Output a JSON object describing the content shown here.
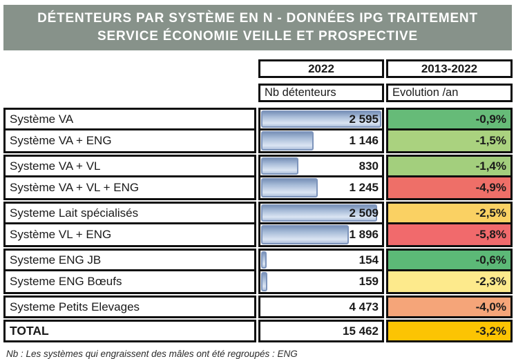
{
  "title": {
    "line1": "DÉTENTEURS PAR SYSTÈME EN N - DONNÉES IPG TRAITEMENT",
    "line2": "SERVICE ÉCONOMIE VEILLE ET PROSPECTIVE"
  },
  "header": {
    "year": "2022",
    "period": "2013-2022",
    "value_label": "Nb détenteurs",
    "evolution_label": "Evolution /an"
  },
  "table": {
    "rows": [
      {
        "label": "Système VA",
        "value": "2 595",
        "bar_pct": 100,
        "evolution": "-0,9%",
        "evolution_color": "#66bb78"
      },
      {
        "label": "Système VA + ENG",
        "value": "1 146",
        "bar_pct": 44.2,
        "evolution": "-1,5%",
        "evolution_color": "#aad27f"
      },
      {
        "label": "Systeme VA + VL",
        "value": "830",
        "bar_pct": 32,
        "evolution": "-1,4%",
        "evolution_color": "#a3cf7d"
      },
      {
        "label": "Système VA + VL + ENG",
        "value": "1 245",
        "bar_pct": 48,
        "evolution": "-4,9%",
        "evolution_color": "#ee6f68"
      },
      {
        "label": "Systeme Lait spécialisés",
        "value": "2 509",
        "bar_pct": 96.7,
        "evolution": "-2,5%",
        "evolution_color": "#fad163"
      },
      {
        "label": "Système VL + ENG",
        "value": "1 896",
        "bar_pct": 73.1,
        "evolution": "-5,8%",
        "evolution_color": "#f16a6c"
      },
      {
        "label": "Systeme ENG JB",
        "value": "154",
        "bar_pct": 5.9,
        "evolution": "-0,6%",
        "evolution_color": "#5cb977"
      },
      {
        "label": "Systeme ENG Bœufs",
        "value": "159",
        "bar_pct": 6.1,
        "evolution": "-2,3%",
        "evolution_color": "#fdea8c"
      },
      {
        "label": "Systeme Petits Elevages",
        "value": "4 473",
        "bar_pct": null,
        "evolution": "-4,0%",
        "evolution_color": "#f5a579"
      },
      {
        "label": "TOTAL",
        "value": "15 462",
        "bar_pct": null,
        "evolution": "-3,2%",
        "evolution_color": "#fcc403"
      }
    ]
  },
  "footnote": "Nb : Les systèmes qui engraissent des mâles ont été regroupés : ENG",
  "colors": {
    "title_bg": "#87928a",
    "title_text": "#ffffff",
    "bar_border": "#7d94bb",
    "bar_fill_light": "#dbe5f3",
    "bar_fill_dark": "#7b93ba",
    "border_black": "#0e0e0e"
  },
  "chart_data": {
    "type": "table",
    "title": "DÉTENTEURS PAR SYSTÈME EN N - DONNÉES IPG TRAITEMENT SERVICE ÉCONOMIE VEILLE ET PROSPECTIVE",
    "columns": [
      "Système",
      "2022 Nb détenteurs",
      "2013-2022 Evolution /an"
    ],
    "rows": [
      [
        "Système VA",
        2595,
        "-0,9%"
      ],
      [
        "Système VA + ENG",
        1146,
        "-1,5%"
      ],
      [
        "Systeme VA + VL",
        830,
        "-1,4%"
      ],
      [
        "Système VA + VL + ENG",
        1245,
        "-4,9%"
      ],
      [
        "Systeme Lait spécialisés",
        2509,
        "-2,5%"
      ],
      [
        "Système VL + ENG",
        1896,
        "-5,8%"
      ],
      [
        "Systeme ENG JB",
        154,
        "-0,6%"
      ],
      [
        "Systeme ENG Bœufs",
        159,
        "-2,3%"
      ],
      [
        "Systeme Petits Elevages",
        4473,
        "-4,0%"
      ],
      [
        "TOTAL",
        15462,
        "-3,2%"
      ]
    ],
    "notes": "Nb détenteurs column shows in-cell blue data bars scaled to max 2595 (bovine rows only); Evolution column uses green-yellow-red color scale"
  }
}
